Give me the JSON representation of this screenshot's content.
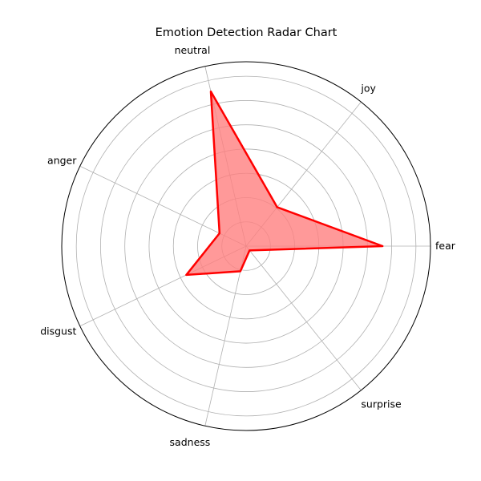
{
  "chart_data": {
    "type": "radar",
    "title": "Emotion Detection Radar Chart",
    "categories": [
      "fear",
      "joy",
      "neutral",
      "anger",
      "disgust",
      "sadness",
      "surprise"
    ],
    "series": [
      {
        "values": [
          0.74,
          0.27,
          0.86,
          0.16,
          0.36,
          0.14,
          0.03
        ],
        "color": "#ff0000",
        "fill_color": "#ff8080",
        "fill_opacity": 0.8
      }
    ],
    "rlim": [
      0,
      1
    ],
    "grid": true,
    "rings": 7,
    "ytick_labels_visible": false
  }
}
